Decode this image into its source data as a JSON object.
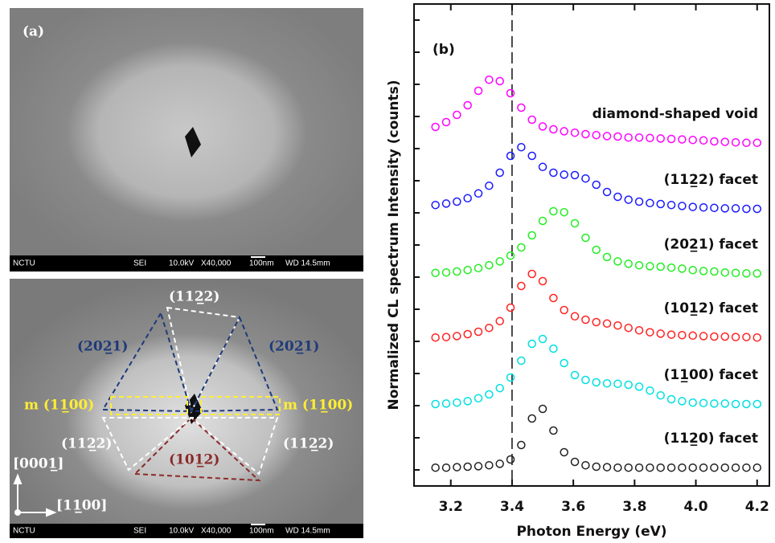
{
  "figure_a": {
    "panel_label": "(a)",
    "info_bar": [
      "NCTU",
      "SEI",
      "10.0kV",
      "X40,000",
      "100nm",
      "WD 14.5mm"
    ],
    "annotations": {
      "top": "(112̲2)",
      "upper_left": "(202̲1)",
      "upper_right": "(202̲1)",
      "m_left": "m (11̲00)",
      "m_right": "m (11̲00)",
      "lower_left": "(112̲2)",
      "lower_right": "(112̲2)",
      "bottom": "(101̲2)"
    },
    "axes": {
      "up": "[0001̲]",
      "right": "[11̲00]"
    }
  },
  "chart_data": {
    "type": "scatter",
    "panel_label": "(b)",
    "x_label": "Photon Energy (eV)",
    "y_label": "Normalized CL spectrum Intensity (counts)",
    "xlim": [
      3.08,
      4.24
    ],
    "xticks": [
      3.2,
      3.4,
      3.6,
      3.8,
      {
        "value": 4,
        "label": "4.0"
      },
      4.2
    ],
    "ylim": [
      0,
      100
    ],
    "vline_x": 3.4,
    "x": [
      3.15,
      3.185,
      3.22,
      3.255,
      3.29,
      3.325,
      3.36,
      3.395,
      3.43,
      3.465,
      3.5,
      3.535,
      3.57,
      3.605,
      3.64,
      3.675,
      3.71,
      3.745,
      3.78,
      3.815,
      3.85,
      3.885,
      3.92,
      3.955,
      3.99,
      4.025,
      4.06,
      4.095,
      4.13,
      4.165,
      4.2
    ],
    "series": [
      {
        "name": "diamond-shaped void",
        "color": "#ff00ff",
        "values": [
          74.5,
          75.5,
          77,
          79,
          82,
          84.3,
          84,
          81.5,
          78.5,
          76,
          74.6,
          74,
          73.6,
          73.3,
          73,
          72.8,
          72.6,
          72.5,
          72.3,
          72.3,
          72.2,
          72.1,
          72,
          71.9,
          71.8,
          71.7,
          71.5,
          71.4,
          71.3,
          71.2,
          71.2
        ]
      },
      {
        "name": "(112̲2) facet",
        "color": "#1a1aff",
        "values": [
          58.3,
          58.6,
          59,
          59.7,
          60.7,
          62.3,
          65,
          68.5,
          70.3,
          68.5,
          66.2,
          65,
          64.6,
          64.5,
          63.8,
          62.5,
          61,
          60,
          59.4,
          59,
          58.7,
          58.5,
          58.3,
          58.1,
          57.9,
          57.8,
          57.7,
          57.6,
          57.6,
          57.5,
          57.5
        ]
      },
      {
        "name": "(202̲1) facet",
        "color": "#22ee22",
        "values": [
          44.2,
          44.3,
          44.5,
          44.8,
          45.2,
          45.8,
          46.6,
          47.8,
          49.5,
          52,
          55,
          57,
          56.8,
          54.5,
          51.5,
          49,
          47.5,
          46.6,
          46.1,
          45.8,
          45.6,
          45.5,
          45.3,
          45.1,
          44.8,
          44.6,
          44.5,
          44.3,
          44.2,
          44.1,
          44.1
        ]
      },
      {
        "name": "(101̲2) facet",
        "color": "#ff2222",
        "values": [
          30.8,
          30.9,
          31.1,
          31.5,
          32,
          32.8,
          34.2,
          37,
          41.5,
          44,
          42.5,
          39,
          36.5,
          35.2,
          34.5,
          34,
          33.7,
          33.3,
          32.8,
          32.3,
          31.9,
          31.6,
          31.4,
          31.3,
          31.2,
          31.1,
          31,
          31,
          30.9,
          30.9,
          30.8
        ]
      },
      {
        "name": "(11̲00) facet",
        "color": "#00e0e0",
        "values": [
          17,
          17.1,
          17.3,
          17.6,
          18.2,
          19,
          20.3,
          22.5,
          26,
          29.5,
          30.5,
          28.5,
          25.5,
          23,
          22,
          21.5,
          21.3,
          21.2,
          21,
          20.6,
          19.8,
          18.8,
          18,
          17.6,
          17.3,
          17.2,
          17.1,
          17.1,
          17,
          17,
          17
        ]
      },
      {
        "name": "(112̲0) facet",
        "color": "#222222",
        "values": [
          3.8,
          3.8,
          3.9,
          4,
          4.1,
          4.3,
          4.6,
          5.5,
          8.5,
          14,
          16,
          11.5,
          7,
          5,
          4.3,
          4,
          3.9,
          3.8,
          3.8,
          3.8,
          3.8,
          3.8,
          3.8,
          3.8,
          3.8,
          3.8,
          3.8,
          3.8,
          3.8,
          3.8,
          3.8
        ]
      }
    ]
  }
}
